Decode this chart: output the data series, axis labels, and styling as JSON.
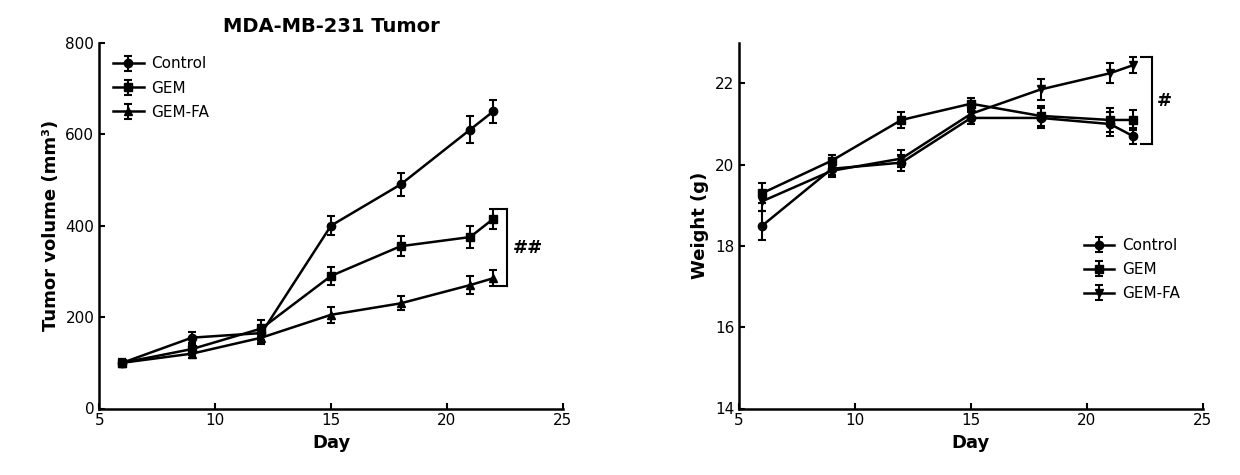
{
  "title": "MDA-MB-231 Tumor",
  "left": {
    "xlabel": "Day",
    "ylabel": "Tumor volume (mm³)",
    "xlim": [
      5,
      25
    ],
    "ylim": [
      0,
      800
    ],
    "yticks": [
      0,
      200,
      400,
      600,
      800
    ],
    "xticks": [
      5,
      10,
      15,
      20,
      25
    ],
    "xticklabels": [
      "5",
      "10",
      "15",
      "20",
      "25"
    ],
    "days": [
      6,
      9,
      12,
      15,
      18,
      21,
      22
    ],
    "control": [
      100,
      155,
      165,
      400,
      490,
      610,
      650
    ],
    "control_err": [
      8,
      12,
      15,
      20,
      25,
      30,
      25
    ],
    "gem": [
      100,
      130,
      175,
      290,
      355,
      375,
      415
    ],
    "gem_err": [
      8,
      12,
      18,
      20,
      22,
      25,
      22
    ],
    "gemfa": [
      100,
      120,
      155,
      205,
      230,
      270,
      285
    ],
    "gemfa_err": [
      8,
      10,
      15,
      18,
      15,
      20,
      18
    ],
    "annotation": "##",
    "legend_loc": "upper left"
  },
  "right": {
    "xlabel": "Day",
    "ylabel": "Weight (g)",
    "xlim": [
      5,
      25
    ],
    "ylim": [
      14,
      23
    ],
    "yticks": [
      14,
      16,
      18,
      20,
      22
    ],
    "xticks": [
      5,
      10,
      15,
      20,
      25
    ],
    "xticklabels": [
      "5",
      "10",
      "15",
      "20",
      "25"
    ],
    "days": [
      6,
      9,
      12,
      15,
      18,
      21,
      22
    ],
    "control": [
      18.5,
      19.9,
      20.05,
      21.15,
      21.15,
      21.0,
      20.7
    ],
    "control_err": [
      0.35,
      0.15,
      0.2,
      0.15,
      0.25,
      0.3,
      0.2
    ],
    "gem": [
      19.3,
      20.1,
      21.1,
      21.5,
      21.2,
      21.1,
      21.1
    ],
    "gem_err": [
      0.25,
      0.15,
      0.2,
      0.15,
      0.25,
      0.3,
      0.25
    ],
    "gemfa": [
      19.1,
      19.85,
      20.15,
      21.25,
      21.85,
      22.25,
      22.45
    ],
    "gemfa_err": [
      0.25,
      0.15,
      0.2,
      0.15,
      0.25,
      0.25,
      0.2
    ],
    "annotation": "#",
    "legend_loc": "lower right"
  },
  "line_color": "#000000",
  "line_width": 1.8,
  "marker_size": 6,
  "font_family": "DejaVu Sans",
  "title_fontsize": 14,
  "label_fontsize": 13,
  "tick_fontsize": 11,
  "legend_fontsize": 11
}
